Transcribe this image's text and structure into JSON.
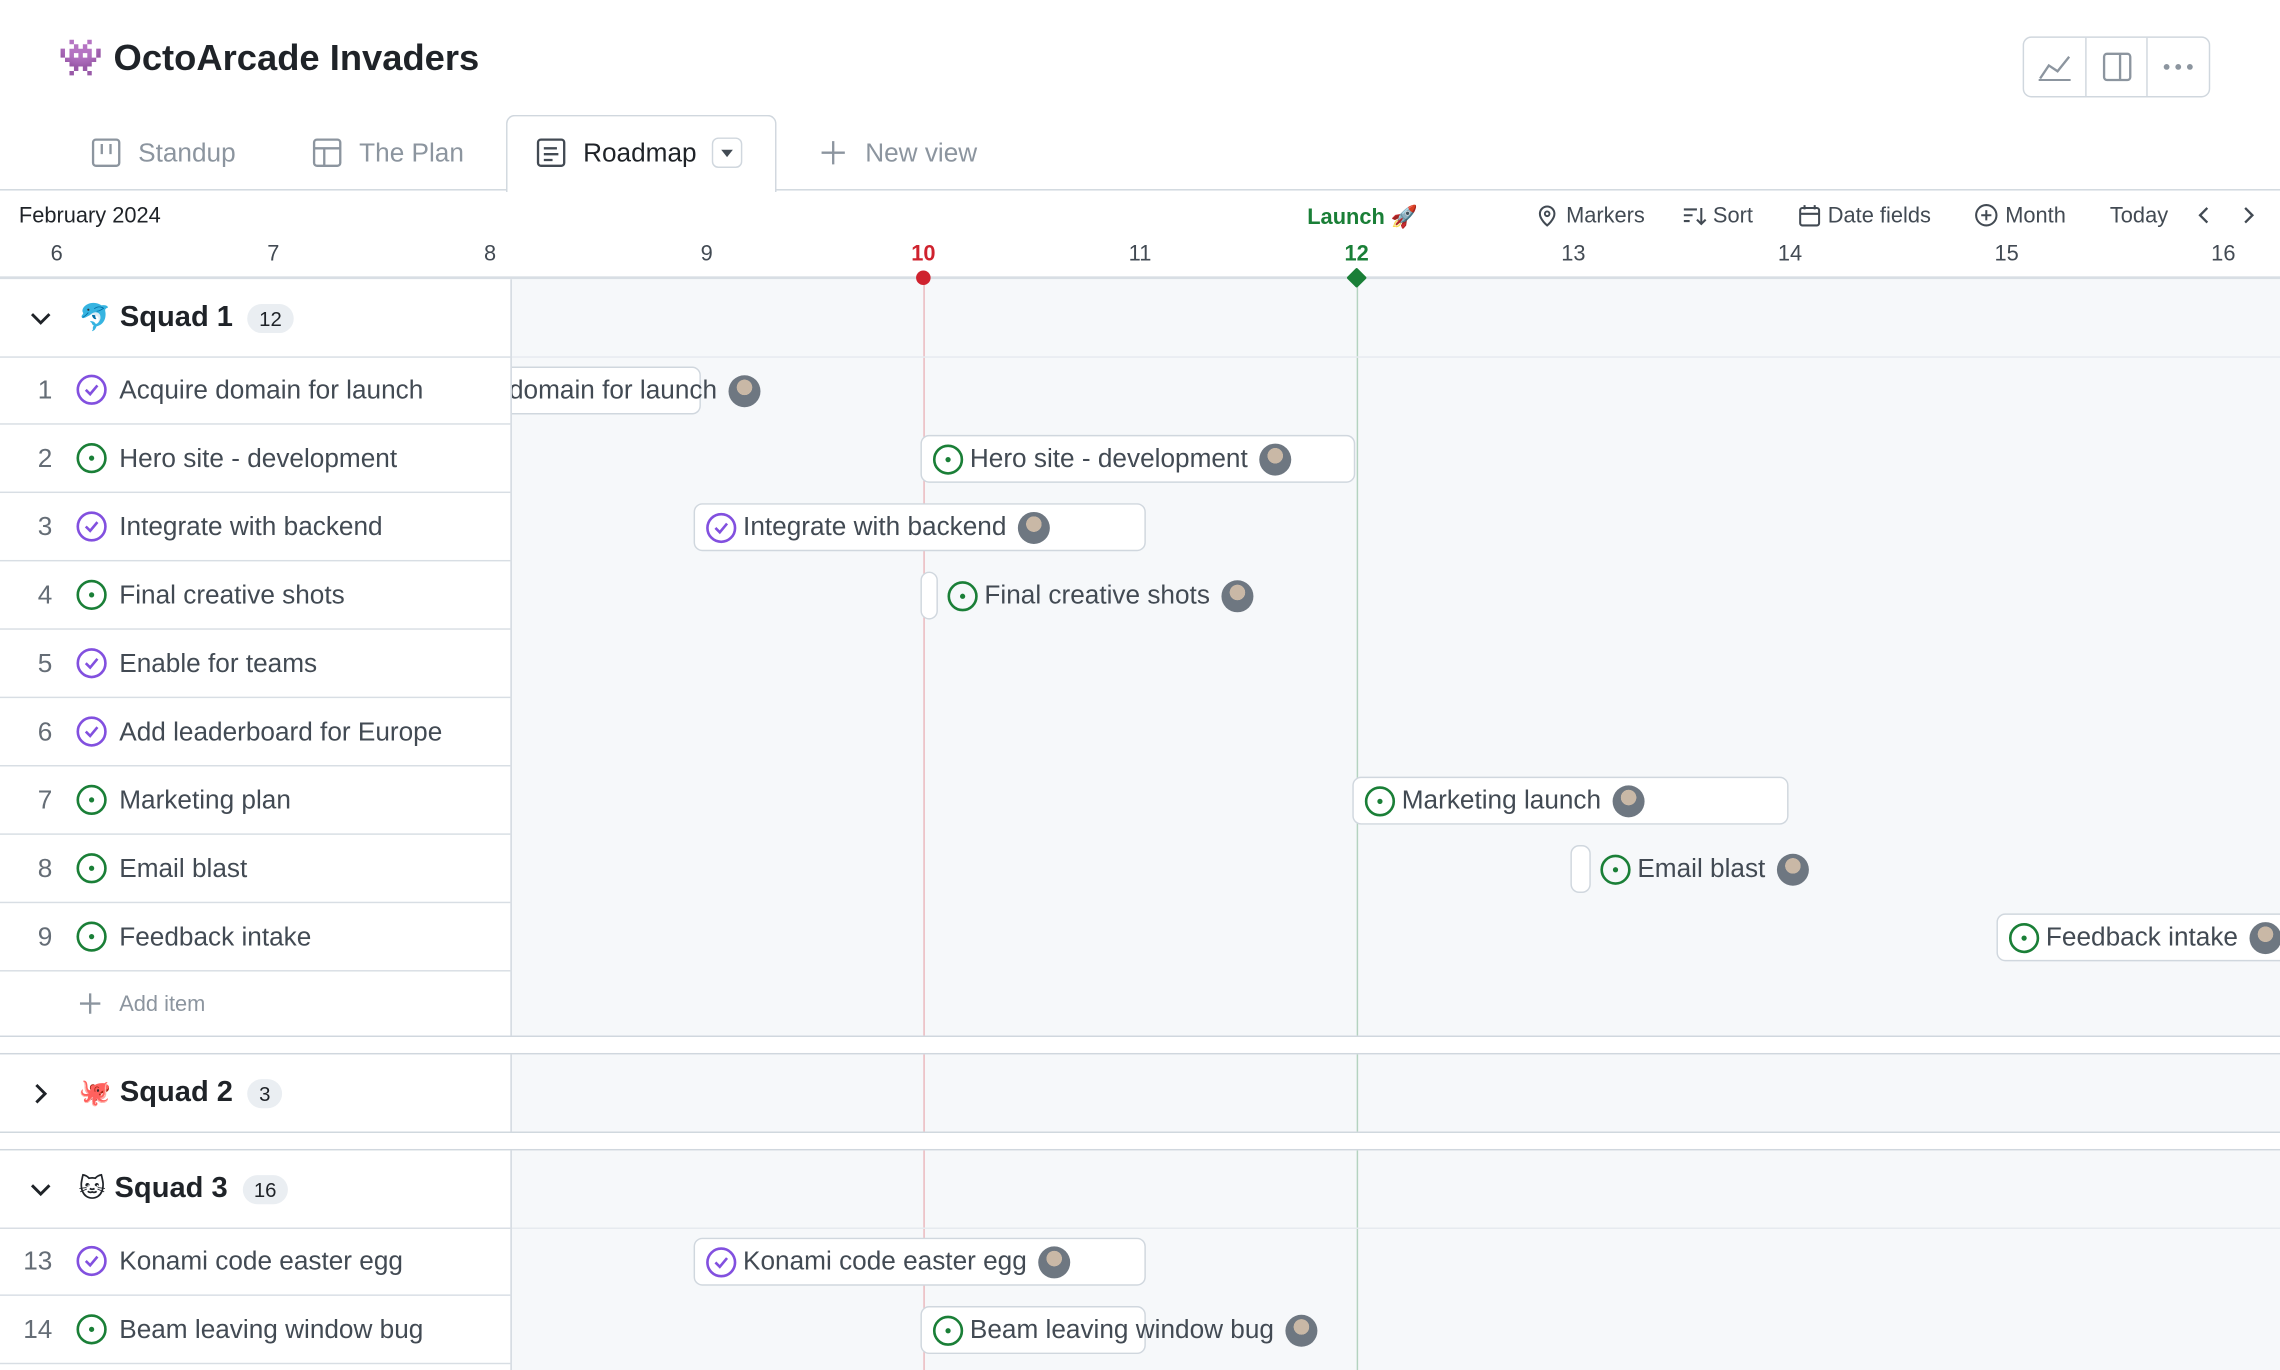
{
  "header": {
    "icon": "👾",
    "title": "OctoArcade Invaders"
  },
  "tabs": [
    "Standup",
    "The Plan",
    "Roadmap",
    "New view"
  ],
  "active_tab": 2,
  "toolbar": [
    "Markers",
    "Sort",
    "Date fields",
    "Month",
    "Today"
  ],
  "timeline": {
    "month": "February 2024",
    "days": [
      {
        "label": "6"
      },
      {
        "label": "7"
      },
      {
        "label": "8"
      },
      {
        "label": "9"
      },
      {
        "label": "10",
        "marker_color": "#cf222e"
      },
      {
        "label": "11"
      },
      {
        "label": "12",
        "marker_color": "#1a7f37",
        "marker_label": "Launch 🚀"
      },
      {
        "label": "13"
      },
      {
        "label": "14"
      },
      {
        "label": "15"
      },
      {
        "label": "16"
      }
    ]
  },
  "groups": [
    {
      "emoji": "🐬",
      "name": "Squad 1",
      "count": "12",
      "expanded": true,
      "add_item": "Add item",
      "items": [
        {
          "number": "1",
          "title": "Acquire domain for launch",
          "icon_color": "#8250df",
          "bar_label": "Acquire domain for launch"
        },
        {
          "number": "2",
          "title": "Hero site - development",
          "icon_color": "#1a7f37",
          "bar_label": "Hero site - development"
        },
        {
          "number": "3",
          "title": "Integrate with backend",
          "icon_color": "#8250df",
          "bar_label": "Integrate with backend"
        },
        {
          "number": "4",
          "title": "Final creative shots",
          "icon_color": "#1a7f37",
          "bar_label": "Final creative shots"
        },
        {
          "number": "5",
          "title": "Enable for teams",
          "icon_color": "#8250df"
        },
        {
          "number": "6",
          "title": "Add leaderboard for Europe",
          "icon_color": "#8250df"
        },
        {
          "number": "7",
          "title": "Marketing plan",
          "icon_color": "#1a7f37",
          "bar_label": "Marketing launch"
        },
        {
          "number": "8",
          "title": "Email blast",
          "icon_color": "#1a7f37",
          "bar_label": "Email blast"
        },
        {
          "number": "9",
          "title": "Feedback intake",
          "icon_color": "#1a7f37",
          "bar_label": "Feedback intake"
        }
      ]
    },
    {
      "emoji": "🐙",
      "name": "Squad 2",
      "count": "3",
      "expanded": false,
      "items": []
    },
    {
      "emoji": "🐱",
      "name": "Squad 3",
      "count": "16",
      "expanded": true,
      "items": [
        {
          "number": "13",
          "title": "Konami code easter egg",
          "icon_color": "#8250df",
          "bar_label": "Konami code easter egg"
        },
        {
          "number": "14",
          "title": "Beam leaving window bug",
          "icon_color": "#1a7f37",
          "bar_label": "Beam leaving window bug"
        }
      ]
    }
  ]
}
